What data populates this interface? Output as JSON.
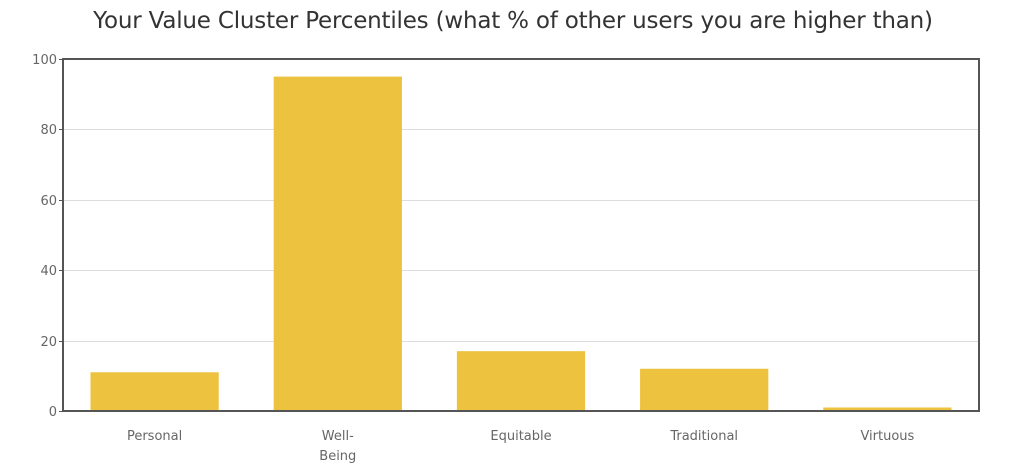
{
  "chart_data": {
    "type": "bar",
    "title": "Your Value Cluster Percentiles (what % of other users you are higher than)",
    "xlabel": "",
    "ylabel": "",
    "categories": [
      "Personal",
      "Well-Being",
      "Equitable",
      "Traditional",
      "Virtuous"
    ],
    "category_label_lines": [
      [
        "Personal"
      ],
      [
        "Well-",
        "Being"
      ],
      [
        "Equitable"
      ],
      [
        "Traditional"
      ],
      [
        "Virtuous"
      ]
    ],
    "values": [
      11,
      95,
      17,
      12,
      1
    ],
    "ylim": [
      0,
      100
    ],
    "yticks": [
      0,
      20,
      40,
      60,
      80,
      100
    ],
    "grid": true,
    "legend": "none",
    "bar_color": "#ECC23F"
  }
}
